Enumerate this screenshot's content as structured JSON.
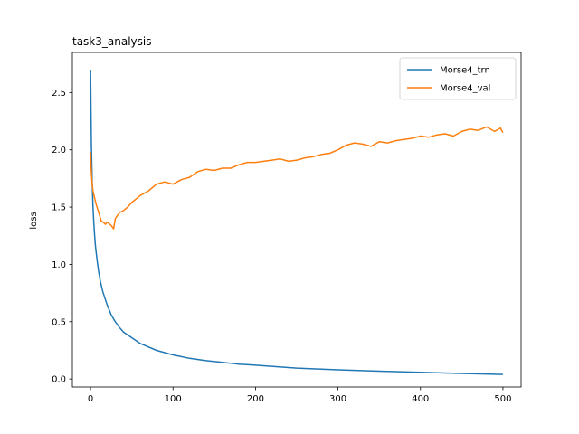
{
  "chart_data": {
    "type": "line",
    "title": "task3_analysis",
    "xlabel": "",
    "ylabel": "loss",
    "xlim": [
      -22,
      522
    ],
    "ylim": [
      -0.07,
      2.85
    ],
    "xticks": [
      0,
      100,
      200,
      300,
      400,
      500
    ],
    "yticks": [
      0.0,
      0.5,
      1.0,
      1.5,
      2.0,
      2.5
    ],
    "xtick_labels": [
      "0",
      "100",
      "200",
      "300",
      "400",
      "500"
    ],
    "ytick_labels": [
      "0.0",
      "0.5",
      "1.0",
      "1.5",
      "2.0",
      "2.5"
    ],
    "grid": false,
    "legend_position": "top-right",
    "series": [
      {
        "name": "Morse4_trn",
        "color": "#1f77b4",
        "x": [
          0,
          1,
          2,
          3,
          4,
          5,
          6,
          8,
          10,
          12,
          15,
          20,
          25,
          30,
          35,
          40,
          50,
          60,
          70,
          80,
          100,
          120,
          140,
          160,
          180,
          200,
          250,
          300,
          350,
          400,
          450,
          500
        ],
        "y": [
          2.7,
          2.05,
          1.72,
          1.5,
          1.36,
          1.25,
          1.16,
          1.03,
          0.93,
          0.85,
          0.76,
          0.65,
          0.56,
          0.5,
          0.45,
          0.41,
          0.36,
          0.31,
          0.28,
          0.25,
          0.21,
          0.18,
          0.16,
          0.145,
          0.13,
          0.12,
          0.095,
          0.08,
          0.068,
          0.058,
          0.048,
          0.04
        ]
      },
      {
        "name": "Morse4_val",
        "color": "#ff7f0e",
        "x": [
          0,
          1,
          2,
          3,
          5,
          7,
          10,
          13,
          15,
          18,
          20,
          25,
          28,
          30,
          35,
          40,
          45,
          50,
          55,
          60,
          65,
          70,
          80,
          90,
          100,
          110,
          120,
          130,
          140,
          150,
          160,
          170,
          180,
          190,
          200,
          210,
          220,
          230,
          240,
          250,
          260,
          270,
          280,
          290,
          300,
          310,
          320,
          330,
          340,
          350,
          360,
          370,
          380,
          390,
          400,
          410,
          420,
          430,
          440,
          450,
          460,
          470,
          480,
          490,
          497,
          500
        ],
        "y": [
          1.98,
          1.8,
          1.7,
          1.64,
          1.58,
          1.52,
          1.45,
          1.38,
          1.37,
          1.35,
          1.37,
          1.34,
          1.31,
          1.4,
          1.45,
          1.47,
          1.5,
          1.54,
          1.57,
          1.6,
          1.62,
          1.64,
          1.7,
          1.72,
          1.7,
          1.74,
          1.76,
          1.81,
          1.83,
          1.82,
          1.84,
          1.84,
          1.87,
          1.89,
          1.89,
          1.9,
          1.91,
          1.92,
          1.9,
          1.91,
          1.93,
          1.94,
          1.96,
          1.97,
          2.0,
          2.04,
          2.06,
          2.05,
          2.03,
          2.07,
          2.06,
          2.08,
          2.09,
          2.1,
          2.12,
          2.11,
          2.13,
          2.14,
          2.12,
          2.16,
          2.18,
          2.17,
          2.2,
          2.16,
          2.19,
          2.15
        ]
      }
    ]
  }
}
